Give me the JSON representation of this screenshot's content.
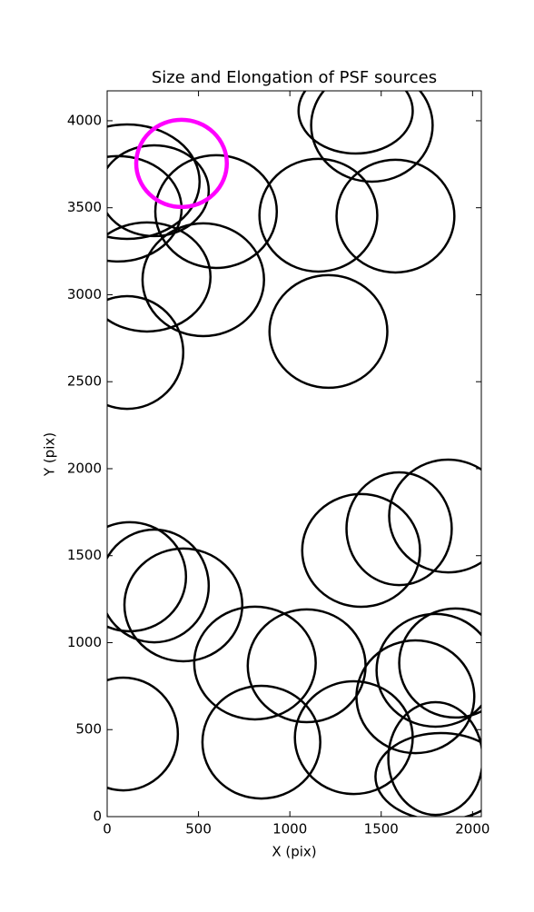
{
  "chart_data": {
    "type": "ellipse",
    "title": "Size and Elongation of PSF sources",
    "xlabel": "X (pix)",
    "ylabel": "Y (pix)",
    "xlim": [
      0,
      2048
    ],
    "ylim": [
      0,
      4172
    ],
    "xticks": [
      0,
      500,
      1000,
      1500,
      2000
    ],
    "yticks": [
      0,
      500,
      1000,
      1500,
      2000,
      2500,
      3000,
      3500,
      4000
    ],
    "series": [
      {
        "color": "#000000",
        "line_width": 2.5,
        "x": [
          1360,
          1449,
          1156,
          1578,
          596,
          109,
          258,
          60,
          526,
          218,
          109,
          1211,
          1598,
          1390,
          1866,
          124,
          258,
          417,
          809,
          1092,
          89,
          844,
          1350,
          1687,
          1797,
          1906,
          1797,
          1826
        ],
        "y": [
          4057,
          3974,
          3457,
          3452,
          3478,
          3650,
          3598,
          3494,
          3086,
          3102,
          2668,
          2789,
          1655,
          1530,
          1728,
          1379,
          1326,
          1217,
          883,
          867,
          475,
          428,
          454,
          689,
          841,
          883,
          334,
          230
        ],
        "width": [
          625,
          665,
          645,
          645,
          665,
          794,
          596,
          695,
          665,
          695,
          615,
          645,
          576,
          645,
          645,
          615,
          596,
          645,
          665,
          645,
          596,
          645,
          645,
          645,
          645,
          615,
          516,
          715
        ],
        "height": [
          491,
          648,
          648,
          648,
          648,
          658,
          522,
          606,
          648,
          627,
          648,
          648,
          648,
          648,
          648,
          627,
          648,
          648,
          648,
          648,
          648,
          648,
          648,
          648,
          648,
          627,
          648,
          501
        ]
      },
      {
        "color": "#ff00ff",
        "line_width": 4.5,
        "x": [
          407
        ],
        "y": [
          3755
        ],
        "width": [
          496
        ],
        "height": [
          501
        ]
      }
    ]
  }
}
